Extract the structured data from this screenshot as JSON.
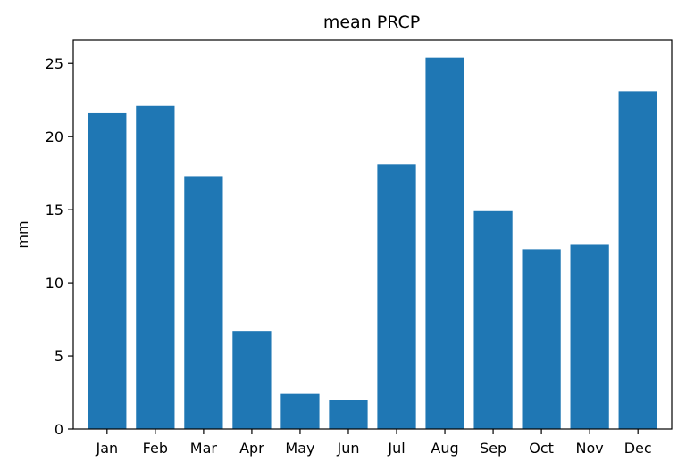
{
  "chart_data": {
    "type": "bar",
    "title": "mean PRCP",
    "xlabel": "",
    "ylabel": "mm",
    "categories": [
      "Jan",
      "Feb",
      "Mar",
      "Apr",
      "May",
      "Jun",
      "Jul",
      "Aug",
      "Sep",
      "Oct",
      "Nov",
      "Dec"
    ],
    "values": [
      21.6,
      22.1,
      17.3,
      6.7,
      2.4,
      2.0,
      18.1,
      25.4,
      14.9,
      12.3,
      12.6,
      23.1
    ],
    "ylim": [
      0,
      26.6
    ],
    "yticks": [
      0,
      5,
      10,
      15,
      20,
      25
    ],
    "ytick_labels": [
      "0",
      "5",
      "10",
      "15",
      "20",
      "25"
    ],
    "grid": false,
    "colors": {
      "bar": "#1f77b4",
      "axes": "#000000",
      "background": "#ffffff"
    }
  }
}
